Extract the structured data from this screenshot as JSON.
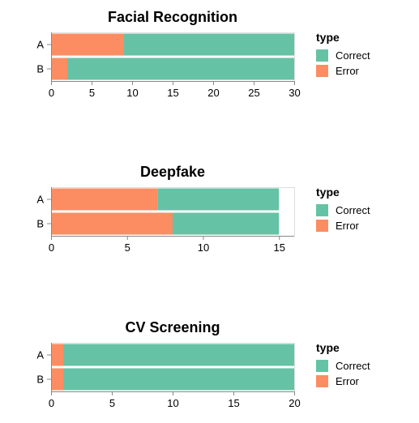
{
  "colors": {
    "correct": "#66c2a5",
    "error": "#fc8d62",
    "axis": "#888888",
    "text": "#000000"
  },
  "chart_data": [
    {
      "type": "bar",
      "orientation": "horizontal",
      "stacked": true,
      "title": "Facial Recognition",
      "categories": [
        "A",
        "B"
      ],
      "series": [
        {
          "name": "Error",
          "values": [
            9,
            2
          ]
        },
        {
          "name": "Correct",
          "values": [
            21,
            28
          ]
        }
      ],
      "xlim": [
        0,
        30
      ],
      "xticks": [
        0,
        5,
        10,
        15,
        20,
        25,
        30
      ],
      "legend_title": "type",
      "legend": [
        "Correct",
        "Error"
      ],
      "legend_position": "right",
      "grid": false
    },
    {
      "type": "bar",
      "orientation": "horizontal",
      "stacked": true,
      "title": "Deepfake",
      "categories": [
        "A",
        "B"
      ],
      "series": [
        {
          "name": "Error",
          "values": [
            7,
            8
          ]
        },
        {
          "name": "Correct",
          "values": [
            8,
            7
          ]
        }
      ],
      "xlim": [
        0,
        16
      ],
      "xticks": [
        0,
        5,
        10,
        15
      ],
      "legend_title": "type",
      "legend": [
        "Correct",
        "Error"
      ],
      "legend_position": "right",
      "grid": false
    },
    {
      "type": "bar",
      "orientation": "horizontal",
      "stacked": true,
      "title": "CV Screening",
      "categories": [
        "A",
        "B"
      ],
      "series": [
        {
          "name": "Error",
          "values": [
            1,
            1
          ]
        },
        {
          "name": "Correct",
          "values": [
            19,
            19
          ]
        }
      ],
      "xlim": [
        0,
        20
      ],
      "xticks": [
        0,
        5,
        10,
        15,
        20
      ],
      "legend_title": "type",
      "legend": [
        "Correct",
        "Error"
      ],
      "legend_position": "right",
      "grid": false
    }
  ]
}
